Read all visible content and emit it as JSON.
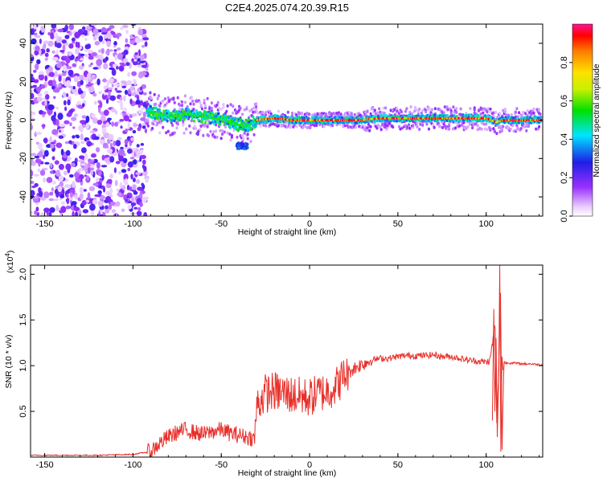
{
  "title": "C2E4.2025.074.20.39.R15",
  "chart_data": [
    {
      "type": "heatmap",
      "xlabel": "Height of straight line (km)",
      "ylabel": "Frequency (Hz)",
      "xlim": [
        -158,
        132
      ],
      "ylim": [
        -50,
        50
      ],
      "x_ticks": [
        "-150",
        "-100",
        "-50",
        "0",
        "50",
        "100"
      ],
      "y_ticks": [
        "-40",
        "-20",
        "0",
        "20",
        "40"
      ],
      "colorbar": {
        "label": "Normalized spectral amplitude",
        "range": [
          0,
          1
        ],
        "ticks": [
          "0.0",
          "0.2",
          "0.4",
          "0.6",
          "0.8"
        ]
      },
      "ridge": {
        "x": [
          -92,
          -85,
          -78,
          -70,
          -62,
          -55,
          -48,
          -42,
          -38,
          -35,
          -30,
          -20,
          -10,
          0,
          10,
          20,
          30,
          40,
          50,
          60,
          70,
          80,
          90,
          100,
          103,
          106,
          110,
          120,
          131
        ],
        "frequency": [
          5,
          3,
          2,
          3,
          2,
          1,
          0,
          -2,
          -3,
          -3,
          0,
          1,
          0,
          0,
          0,
          0,
          0,
          1,
          1,
          1,
          1,
          1,
          1,
          1,
          0,
          -1,
          0,
          0,
          0
        ]
      },
      "noise_region_x": [
        -158,
        -92
      ],
      "side_blob": {
        "x": [
          -42,
          -35
        ],
        "frequency": [
          -15,
          -12
        ]
      }
    },
    {
      "type": "line",
      "xlabel": "Height of straight line (km)",
      "ylabel": "SNR (10 * v/v)",
      "y_scale_label": "(x10",
      "y_scale_exp": "4",
      "xlim": [
        -158,
        132
      ],
      "ylim": [
        0,
        2.1
      ],
      "x_ticks": [
        "-150",
        "-100",
        "-50",
        "0",
        "50",
        "100"
      ],
      "y_ticks": [
        "0.5",
        "1.0",
        "1.5",
        "2.0"
      ],
      "series": [
        {
          "color": "#e8302a",
          "x": [
            -158,
            -120,
            -100,
            -90,
            -85,
            -80,
            -75,
            -70,
            -65,
            -60,
            -55,
            -50,
            -45,
            -40,
            -35,
            -31,
            -30,
            -28,
            -25,
            -20,
            -15,
            -10,
            -5,
            0,
            5,
            10,
            15,
            20,
            25,
            30,
            35,
            40,
            45,
            50,
            55,
            60,
            65,
            70,
            75,
            80,
            85,
            90,
            95,
            100,
            102,
            104,
            105,
            106,
            107,
            108,
            109,
            110,
            112,
            115,
            120,
            125,
            131
          ],
          "y": [
            0.02,
            0.02,
            0.03,
            0.06,
            0.15,
            0.22,
            0.27,
            0.3,
            0.27,
            0.25,
            0.28,
            0.3,
            0.26,
            0.24,
            0.22,
            0.2,
            0.55,
            0.62,
            0.7,
            0.72,
            0.7,
            0.68,
            0.66,
            0.65,
            0.7,
            0.72,
            0.78,
            0.9,
            0.97,
            1.02,
            1.06,
            1.08,
            1.08,
            1.1,
            1.11,
            1.11,
            1.11,
            1.12,
            1.1,
            1.1,
            1.08,
            1.06,
            1.05,
            1.04,
            1.05,
            1.3,
            1.5,
            0.35,
            0.9,
            1.95,
            0.1,
            1.03,
            1.03,
            1.03,
            1.02,
            1.02,
            1.01
          ]
        }
      ]
    }
  ]
}
